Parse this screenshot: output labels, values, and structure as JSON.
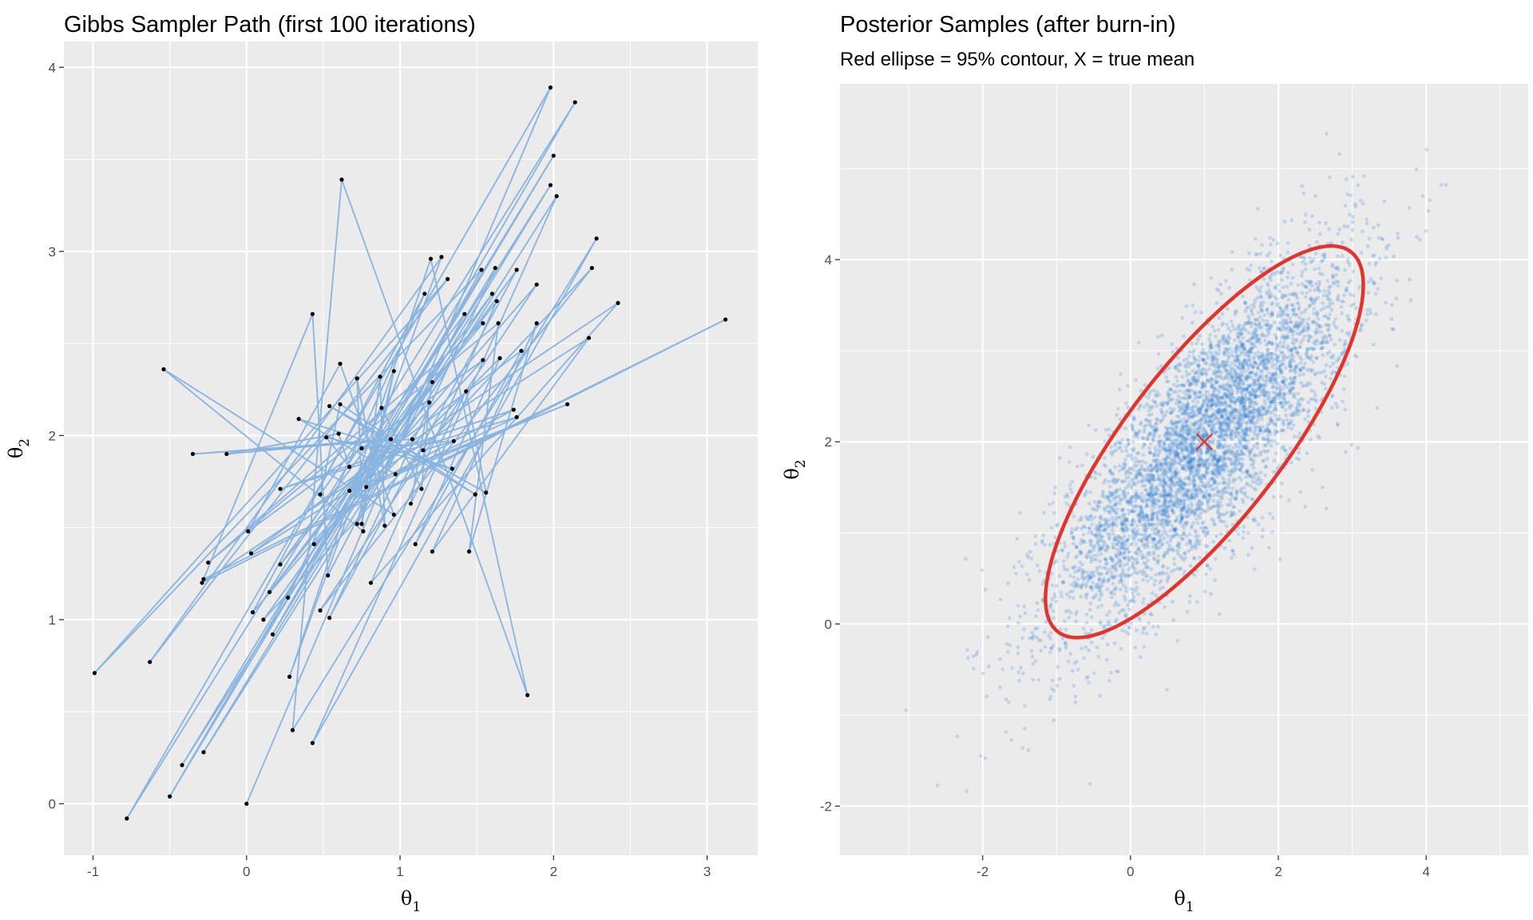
{
  "chart_data": [
    {
      "type": "line",
      "title": "Gibbs Sampler Path (first 100 iterations)",
      "xlabel": "θ",
      "xlabel_sub": "1",
      "ylabel": "θ",
      "ylabel_sub": "2",
      "xlim": [
        -1.19,
        3.33
      ],
      "ylim": [
        -0.28,
        4.14
      ],
      "xticks": [
        -1,
        0,
        1,
        2,
        3
      ],
      "yticks": [
        0,
        1,
        2,
        3,
        4
      ],
      "grid": true,
      "line_color": "#89b4e0",
      "point_color": "#000000",
      "points": [
        [
          0,
          0
        ],
        [
          1.98,
          3.89
        ],
        [
          -0.78,
          -0.08
        ],
        [
          2.14,
          3.81
        ],
        [
          -0.5,
          0.04
        ],
        [
          2.0,
          3.52
        ],
        [
          -0.42,
          0.21
        ],
        [
          1.98,
          3.36
        ],
        [
          -0.28,
          0.28
        ],
        [
          2.02,
          3.3
        ],
        [
          0.43,
          0.33
        ],
        [
          2.28,
          3.07
        ],
        [
          0.3,
          0.4
        ],
        [
          0.62,
          3.39
        ],
        [
          1.83,
          0.59
        ],
        [
          1.2,
          2.96
        ],
        [
          0.28,
          0.69
        ],
        [
          1.27,
          2.97
        ],
        [
          -0.63,
          0.77
        ],
        [
          1.31,
          2.85
        ],
        [
          -0.99,
          0.71
        ],
        [
          1.53,
          2.9
        ],
        [
          0.17,
          0.92
        ],
        [
          1.62,
          2.91
        ],
        [
          0.54,
          1.01
        ],
        [
          1.76,
          2.9
        ],
        [
          0.11,
          1.0
        ],
        [
          2.25,
          2.91
        ],
        [
          0.48,
          1.05
        ],
        [
          1.89,
          2.82
        ],
        [
          0.04,
          1.04
        ],
        [
          1.16,
          2.77
        ],
        [
          0.27,
          1.12
        ],
        [
          1.6,
          2.77
        ],
        [
          0.15,
          1.15
        ],
        [
          1.63,
          2.73
        ],
        [
          0.81,
          1.2
        ],
        [
          2.42,
          2.72
        ],
        [
          -0.29,
          1.2
        ],
        [
          3.12,
          2.63
        ],
        [
          -0.28,
          1.22
        ],
        [
          0.43,
          2.66
        ],
        [
          0.53,
          1.24
        ],
        [
          1.42,
          2.66
        ],
        [
          0.22,
          1.3
        ],
        [
          1.54,
          2.61
        ],
        [
          -0.25,
          1.31
        ],
        [
          1.64,
          2.61
        ],
        [
          1.45,
          1.37
        ],
        [
          1.89,
          2.61
        ],
        [
          1.21,
          1.37
        ],
        [
          2.23,
          2.53
        ],
        [
          0.03,
          1.36
        ],
        [
          1.79,
          2.46
        ],
        [
          1.1,
          1.41
        ],
        [
          1.65,
          2.42
        ],
        [
          0.44,
          1.41
        ],
        [
          1.54,
          2.41
        ],
        [
          0.01,
          1.48
        ],
        [
          0.61,
          2.39
        ],
        [
          0.96,
          1.57
        ],
        [
          -0.54,
          2.36
        ],
        [
          0.76,
          1.48
        ],
        [
          0.72,
          2.31
        ],
        [
          0.9,
          1.51
        ],
        [
          0.87,
          2.32
        ],
        [
          0.75,
          1.52
        ],
        [
          0.96,
          2.35
        ],
        [
          0.72,
          1.52
        ],
        [
          1.21,
          2.29
        ],
        [
          1.07,
          1.63
        ],
        [
          1.43,
          2.24
        ],
        [
          1.56,
          1.69
        ],
        [
          0.54,
          2.16
        ],
        [
          1.49,
          1.68
        ],
        [
          0.61,
          2.17
        ],
        [
          0.48,
          1.68
        ],
        [
          0.88,
          2.15
        ],
        [
          1.14,
          1.71
        ],
        [
          1.19,
          2.18
        ],
        [
          0.67,
          1.7
        ],
        [
          2.09,
          2.17
        ],
        [
          0.78,
          1.72
        ],
        [
          1.74,
          2.14
        ],
        [
          0.22,
          1.71
        ],
        [
          1.76,
          2.1
        ],
        [
          0.97,
          1.79
        ],
        [
          0.34,
          2.09
        ],
        [
          1.34,
          1.82
        ],
        [
          0.52,
          1.99
        ],
        [
          0.67,
          1.83
        ],
        [
          0.6,
          2.01
        ],
        [
          -0.13,
          1.9
        ],
        [
          0.94,
          1.98
        ],
        [
          -0.35,
          1.9
        ],
        [
          1.08,
          1.98
        ],
        [
          1.15,
          1.92
        ],
        [
          1.35,
          1.97
        ],
        [
          0.75,
          1.93
        ]
      ]
    },
    {
      "type": "scatter",
      "title": "Posterior Samples (after burn-in)",
      "subtitle": "Red ellipse = 95% contour, X = true mean",
      "xlabel": "θ",
      "xlabel_sub": "1",
      "ylabel": "θ",
      "ylabel_sub": "2",
      "xlim": [
        -3.93,
        5.38
      ],
      "ylim": [
        -2.54,
        5.93
      ],
      "xticks": [
        -2,
        0,
        2,
        4
      ],
      "yticks": [
        -2,
        0,
        2,
        4
      ],
      "grid": true,
      "samples": {
        "n": 5000,
        "mean": [
          1,
          2
        ],
        "sd": [
          1,
          1
        ],
        "rho": 0.8,
        "color": "#2f7fd4",
        "alpha": 0.22
      },
      "ellipse": {
        "center": [
          1,
          2
        ],
        "radius": 2.15,
        "rho": 0.8,
        "color": "#e0342d"
      },
      "true_mean": {
        "x": 1,
        "y": 2,
        "marker": "X",
        "color": "#e0342d"
      }
    }
  ]
}
